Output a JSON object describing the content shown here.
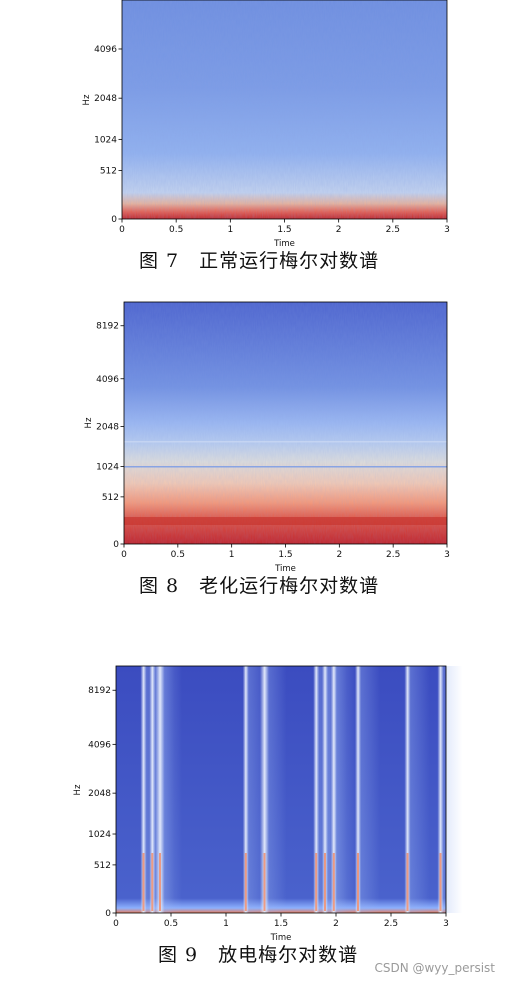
{
  "chart_data": [
    {
      "type": "heatmap",
      "xlabel": "Time",
      "ylabel": "Hz",
      "xlim": [
        0,
        3
      ],
      "x_ticks": [
        "0",
        "0.5",
        "1",
        "1.5",
        "2",
        "2.5",
        "3"
      ],
      "x_tick_values": [
        0,
        0.5,
        1,
        1.5,
        2,
        2.5,
        3
      ],
      "y_ticks": [
        "0",
        "512",
        "1024",
        "2048",
        "4096"
      ],
      "y_tick_values": [
        0,
        512,
        1024,
        2048,
        4096
      ],
      "colormap": "coolwarm",
      "caption": "图 7　正常运行梅尔对数谱"
    },
    {
      "type": "heatmap",
      "xlabel": "Time",
      "ylabel": "Hz",
      "xlim": [
        0,
        3
      ],
      "x_ticks": [
        "0",
        "0.5",
        "1",
        "1.5",
        "2",
        "2.5",
        "3"
      ],
      "x_tick_values": [
        0,
        0.5,
        1,
        1.5,
        2,
        2.5,
        3
      ],
      "y_ticks": [
        "0",
        "512",
        "1024",
        "2048",
        "4096",
        "8192"
      ],
      "y_tick_values": [
        0,
        512,
        1024,
        2048,
        4096,
        8192
      ],
      "colormap": "coolwarm",
      "caption": "图 8　老化运行梅尔对数谱"
    },
    {
      "type": "heatmap",
      "xlabel": "Time",
      "ylabel": "Hz",
      "xlim": [
        0,
        3
      ],
      "x_ticks": [
        "0",
        "0.5",
        "1",
        "1.5",
        "2",
        "2.5",
        "3"
      ],
      "x_tick_values": [
        0,
        0.5,
        1,
        1.5,
        2,
        2.5,
        3
      ],
      "y_ticks": [
        "0",
        "512",
        "1024",
        "2048",
        "4096",
        "8192"
      ],
      "y_tick_values": [
        0,
        512,
        1024,
        2048,
        4096,
        8192
      ],
      "colormap": "coolwarm",
      "event_times": [
        0.25,
        0.33,
        0.4,
        1.18,
        1.35,
        1.82,
        1.9,
        1.98,
        2.2,
        2.65,
        2.95
      ],
      "caption": "图 9　放电梅尔对数谱"
    }
  ],
  "watermark": "CSDN @wyy_persist",
  "colors": {
    "cold": "#3b4cc0",
    "light_blue": "#8db0fe",
    "neutral": "#dddddd",
    "warm": "#f4987a",
    "hot": "#b40426"
  }
}
